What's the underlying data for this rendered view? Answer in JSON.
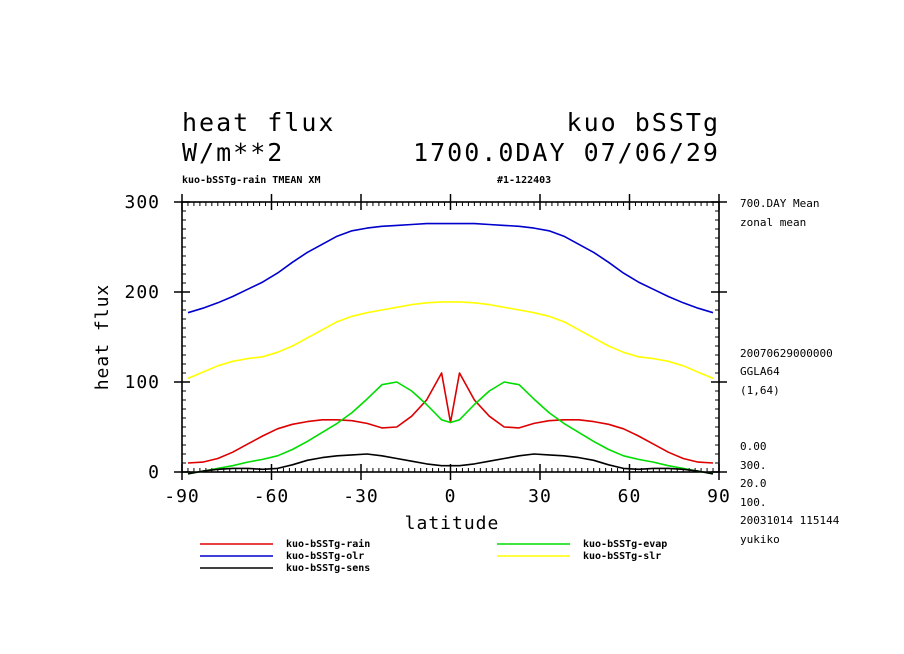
{
  "header": {
    "title_left": "heat flux",
    "title_right": "kuo bSSTg",
    "units": "W/m**2",
    "day_label": "1700.0DAY 07/06/29",
    "run_label": "kuo-bSSTg-rain TMEAN XM",
    "id_label": "#1-122403"
  },
  "side_info": {
    "mean_label": "700.DAY Mean",
    "zonal_label": "zonal mean",
    "date_code": "20070629000000",
    "grid": "GGLA64",
    "dims": "(1,64)",
    "v1": "0.00",
    "v2": "300.",
    "v3": "20.0",
    "v4": "100.",
    "timestamp": "20031014 115144",
    "user": "yukiko"
  },
  "chart_data": {
    "type": "line",
    "xlabel": "latitude",
    "ylabel": "heat flux",
    "xlim": [
      -90,
      90
    ],
    "ylim": [
      0,
      300
    ],
    "xticks": [
      "-90",
      "-60",
      "-30",
      "0",
      "30",
      "60",
      "90"
    ],
    "yticks": [
      "0",
      "100",
      "200",
      "300"
    ],
    "x": [
      -88,
      -83,
      -78,
      -73,
      -68,
      -63,
      -58,
      -53,
      -48,
      -43,
      -38,
      -33,
      -28,
      -23,
      -18,
      -13,
      -8,
      -3,
      0,
      3,
      8,
      13,
      18,
      23,
      28,
      33,
      38,
      43,
      48,
      53,
      58,
      63,
      68,
      73,
      78,
      83,
      88
    ],
    "series": [
      {
        "name": "kuo-bSSTg-rain",
        "color": "#dd0000",
        "values": [
          10,
          11,
          15,
          22,
          31,
          40,
          48,
          53,
          56,
          58,
          58,
          57,
          54,
          49,
          50,
          62,
          80,
          110,
          55,
          110,
          80,
          62,
          50,
          49,
          54,
          57,
          58,
          58,
          56,
          53,
          48,
          40,
          31,
          22,
          15,
          11,
          10
        ]
      },
      {
        "name": "kuo-bSSTg-evap",
        "color": "#00dd00",
        "values": [
          -2,
          1,
          4,
          7,
          11,
          14,
          18,
          25,
          34,
          44,
          54,
          66,
          81,
          97,
          100,
          90,
          75,
          58,
          55,
          58,
          75,
          90,
          100,
          97,
          81,
          66,
          54,
          44,
          34,
          25,
          18,
          14,
          11,
          7,
          4,
          1,
          -2
        ]
      },
      {
        "name": "kuo-bSSTg-olr",
        "color": "#0000cc",
        "values": [
          177,
          182,
          188,
          195,
          203,
          211,
          221,
          233,
          244,
          253,
          262,
          268,
          271,
          273,
          274,
          275,
          276,
          276,
          276,
          276,
          276,
          275,
          274,
          273,
          271,
          268,
          262,
          253,
          244,
          233,
          221,
          211,
          203,
          195,
          188,
          182,
          177
        ]
      },
      {
        "name": "kuo-bSSTg-slr",
        "color": "#ffff00",
        "values": [
          104,
          111,
          118,
          123,
          126,
          128,
          133,
          140,
          149,
          158,
          167,
          173,
          177,
          180,
          183,
          186,
          188,
          189,
          189,
          189,
          188,
          186,
          183,
          180,
          177,
          173,
          167,
          158,
          149,
          140,
          133,
          128,
          126,
          123,
          118,
          111,
          104
        ]
      },
      {
        "name": "kuo-bSSTg-sens",
        "color": "#000000",
        "values": [
          -2,
          1,
          3,
          4,
          4,
          3,
          4,
          8,
          13,
          16,
          18,
          19,
          20,
          18,
          15,
          12,
          9,
          7,
          7,
          7,
          9,
          12,
          15,
          18,
          20,
          19,
          18,
          16,
          13,
          8,
          4,
          3,
          4,
          4,
          3,
          1,
          -2
        ]
      }
    ],
    "legend_order": [
      "kuo-bSSTg-rain",
      "kuo-bSSTg-olr",
      "kuo-bSSTg-sens",
      "kuo-bSSTg-evap",
      "kuo-bSSTg-slr"
    ]
  }
}
